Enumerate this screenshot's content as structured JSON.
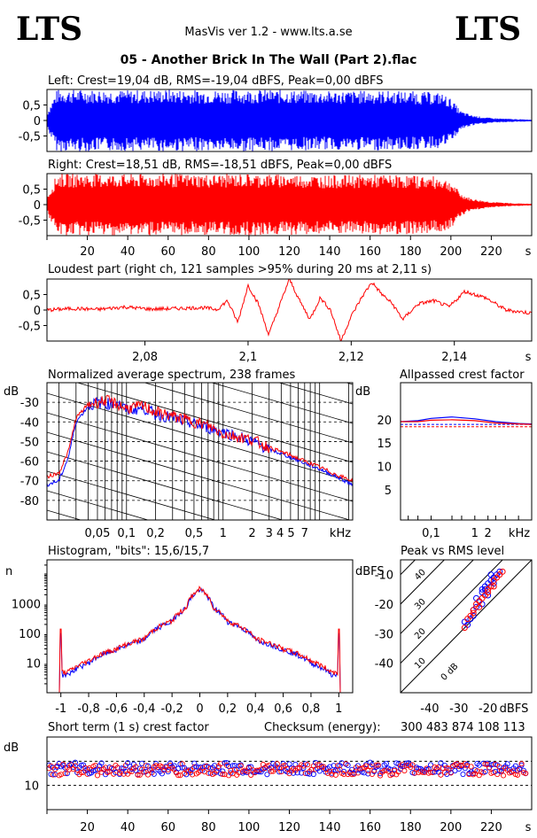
{
  "header": {
    "logo_left": "LTS",
    "logo_right": "LTS",
    "app_title": "MasVis ver 1.2 - www.lts.a.se",
    "file_title": "05 - Another Brick In The Wall (Part 2).flac"
  },
  "colors": {
    "left": "#0000ff",
    "right": "#ff0000",
    "axis": "#000000"
  },
  "chart_data": [
    {
      "id": "left",
      "type": "area",
      "title": "Left: Crest=19,04 dB, RMS=-19,04 dBFS, Peak=0,00 dBFS",
      "ylim": [
        -1,
        1
      ],
      "yticks": [
        "0.5",
        "0",
        "-0.5"
      ],
      "yticklabels": [
        "0,5",
        "0",
        "-0,5"
      ],
      "xlim": [
        0,
        240
      ],
      "envelope": {
        "x": [
          0,
          5,
          10,
          20,
          40,
          60,
          80,
          100,
          120,
          140,
          160,
          180,
          195,
          200,
          205,
          210,
          215,
          220,
          230,
          240
        ],
        "amp": [
          0.25,
          1,
          1,
          1,
          0.98,
          1,
          0.98,
          1,
          0.98,
          0.95,
          0.97,
          0.95,
          0.9,
          0.7,
          0.3,
          0.18,
          0.12,
          0.08,
          0.05,
          0.03
        ]
      }
    },
    {
      "id": "right",
      "type": "area",
      "title": "Right: Crest=18,51 dB, RMS=-18,51 dBFS, Peak=0,00 dBFS",
      "ylim": [
        -1,
        1
      ],
      "yticklabels": [
        "0,5",
        "0",
        "-0,5"
      ],
      "xlim": [
        0,
        240
      ],
      "xticks": [
        20,
        40,
        60,
        80,
        100,
        120,
        140,
        160,
        180,
        200,
        220
      ],
      "xunit": "s",
      "envelope": {
        "x": [
          0,
          5,
          10,
          20,
          40,
          60,
          80,
          100,
          120,
          140,
          160,
          180,
          195,
          200,
          205,
          210,
          215,
          220,
          230,
          240
        ],
        "amp": [
          0.25,
          1,
          1,
          1,
          0.98,
          1,
          0.98,
          1,
          0.98,
          0.95,
          0.97,
          0.95,
          0.9,
          0.75,
          0.35,
          0.2,
          0.14,
          0.09,
          0.05,
          0.03
        ]
      }
    },
    {
      "id": "loudest",
      "type": "line",
      "title": "Loudest part (right ch, 121 samples >95% during 20 ms at 2,11 s)",
      "xlim": [
        2.061,
        2.155
      ],
      "ylim": [
        -1,
        1
      ],
      "yticklabels": [
        "0,5",
        "0",
        "-0,5"
      ],
      "xticks": [
        2.08,
        2.1,
        2.12,
        2.14
      ],
      "xticklabels": [
        "2,08",
        "2,1",
        "2,12",
        "2,14"
      ],
      "xunit": "s",
      "series": [
        {
          "x": [
            2.061,
            2.066,
            2.071,
            2.076,
            2.081,
            2.086,
            2.091,
            2.094,
            2.096,
            2.098,
            2.1,
            2.102,
            2.104,
            2.106,
            2.108,
            2.11,
            2.112,
            2.114,
            2.116,
            2.118,
            2.12,
            2.122,
            2.124,
            2.126,
            2.128,
            2.13,
            2.133,
            2.136,
            2.139,
            2.142,
            2.146,
            2.15,
            2.155
          ],
          "y": [
            0.0,
            0.05,
            0.02,
            0.1,
            0.03,
            0.05,
            0.08,
            0.02,
            0.3,
            -0.4,
            0.8,
            0.2,
            -0.8,
            0.1,
            1.0,
            0.3,
            -0.3,
            0.4,
            0.0,
            -1.0,
            -0.2,
            0.4,
            0.9,
            0.5,
            0.2,
            -0.3,
            0.2,
            0.3,
            0.1,
            0.6,
            0.4,
            0.0,
            -0.1
          ]
        }
      ]
    },
    {
      "id": "spectrum",
      "type": "line",
      "title": "Normalized average spectrum, 238 frames",
      "ylabel": "dB",
      "ylim": [
        -90,
        -20
      ],
      "yticklabels": [
        "-30",
        "-40",
        "-50",
        "-60",
        "-70",
        "-80"
      ],
      "xticklabels": [
        "0,05",
        "0,1",
        "0,2",
        "0,5",
        "1",
        "2",
        "3",
        "4 5",
        "7",
        "kHz"
      ],
      "xscale": "log",
      "xlim": [
        0.015,
        22
      ],
      "series": [
        {
          "name": "left",
          "x": [
            0.015,
            0.02,
            0.025,
            0.03,
            0.04,
            0.05,
            0.06,
            0.08,
            0.1,
            0.15,
            0.2,
            0.3,
            0.5,
            0.7,
            1,
            2,
            3,
            5,
            7,
            10,
            15,
            22
          ],
          "y": [
            -72,
            -70,
            -58,
            -40,
            -32,
            -30,
            -31,
            -30,
            -34,
            -33,
            -36,
            -38,
            -41,
            -43,
            -45,
            -50,
            -54,
            -58,
            -61,
            -64,
            -68,
            -72
          ]
        },
        {
          "name": "right",
          "x": [
            0.015,
            0.02,
            0.025,
            0.03,
            0.04,
            0.05,
            0.06,
            0.08,
            0.1,
            0.15,
            0.2,
            0.3,
            0.5,
            0.7,
            1,
            2,
            3,
            5,
            7,
            10,
            15,
            22
          ],
          "y": [
            -68,
            -66,
            -55,
            -38,
            -31,
            -30,
            -29,
            -31,
            -33,
            -32,
            -35,
            -37,
            -40,
            -42,
            -46,
            -49,
            -53,
            -57,
            -60,
            -63,
            -67,
            -70
          ]
        }
      ]
    },
    {
      "id": "allpassed",
      "type": "line",
      "title": "Allpassed crest factor",
      "ylabel": "dB",
      "ylim": [
        0,
        25
      ],
      "yticklabels": [
        "20",
        "15",
        "10",
        "5"
      ],
      "xticklabels": [
        "0,1",
        "1",
        "2",
        "kHz"
      ],
      "xscale": "log",
      "xlim": [
        0.02,
        20
      ],
      "series": [
        {
          "name": "left",
          "x": [
            0.02,
            0.05,
            0.1,
            0.3,
            1,
            3,
            10,
            20
          ],
          "y": [
            19.6,
            19.8,
            20.3,
            20.6,
            20.2,
            19.6,
            19.2,
            19.1
          ]
        },
        {
          "name": "right",
          "x": [
            0.02,
            0.05,
            0.1,
            0.3,
            1,
            3,
            10,
            20
          ],
          "y": [
            19.6,
            19.6,
            19.9,
            20.0,
            19.8,
            19.3,
            19.1,
            19.0
          ]
        }
      ],
      "reference": [
        {
          "y": 19.0,
          "color": "#0000ff"
        },
        {
          "y": 18.5,
          "color": "#ff0000"
        }
      ]
    },
    {
      "id": "histogram",
      "type": "line",
      "title": "Histogram, \"bits\": 15,6/15,7",
      "ylabel": "n",
      "yscale": "log",
      "ylim": [
        1,
        30000
      ],
      "yticklabels": [
        "1000",
        "100",
        "10"
      ],
      "xlim": [
        -1.1,
        1.1
      ],
      "xticklabels": [
        "-1",
        "-0,8",
        "-0,6",
        "-0,4",
        "-0,2",
        "0",
        "0,2",
        "0,4",
        "0,6",
        "0,8",
        "1"
      ],
      "series": [
        {
          "name": "left",
          "x": [
            -1,
            -0.95,
            -0.9,
            -0.8,
            -0.6,
            -0.4,
            -0.2,
            -0.1,
            0,
            0.1,
            0.2,
            0.4,
            0.6,
            0.8,
            0.9,
            0.95,
            1
          ],
          "y": [
            100,
            4,
            6,
            10,
            28,
            60,
            250,
            700,
            3000,
            700,
            250,
            60,
            28,
            10,
            6,
            4,
            100
          ]
        },
        {
          "name": "right",
          "x": [
            -1,
            -0.95,
            -0.9,
            -0.8,
            -0.6,
            -0.4,
            -0.2,
            -0.1,
            0,
            0.1,
            0.2,
            0.4,
            0.6,
            0.8,
            0.9,
            0.95,
            1
          ],
          "y": [
            140,
            5,
            7,
            12,
            30,
            65,
            260,
            720,
            3200,
            720,
            260,
            65,
            30,
            12,
            7,
            5,
            140
          ]
        }
      ]
    },
    {
      "id": "peakrms",
      "type": "scatter",
      "title": "Peak vs RMS level",
      "ylabel": "dBFS",
      "ylim": [
        -50,
        -5
      ],
      "yticklabels": [
        "-10",
        "-20",
        "-30",
        "-40"
      ],
      "xlim": [
        -50,
        -5
      ],
      "xticklabels": [
        "-40",
        "-30",
        "-20",
        "dBFS"
      ],
      "diagonal_labels": [
        "40",
        "30",
        "20",
        "10",
        "0 dB"
      ],
      "series": [
        {
          "name": "left",
          "x": [
            -27,
            -26,
            -25,
            -24,
            -24,
            -23,
            -22,
            -22,
            -21,
            -20,
            -20,
            -19,
            -18,
            -17,
            -16,
            -22,
            -21,
            -19,
            -18,
            -28,
            -25
          ],
          "y": [
            -27,
            -25,
            -22,
            -21,
            -18,
            -19,
            -16,
            -20,
            -14,
            -13,
            -17,
            -12,
            -11,
            -10,
            -9,
            -15,
            -15,
            -10,
            -13,
            -26,
            -24
          ]
        },
        {
          "name": "right",
          "x": [
            -28,
            -27,
            -26,
            -25,
            -24,
            -23,
            -22,
            -21,
            -20,
            -19,
            -18,
            -17,
            -16,
            -15,
            -20,
            -18,
            -23,
            -25
          ],
          "y": [
            -28,
            -25,
            -24,
            -22,
            -20,
            -19,
            -18,
            -17,
            -15,
            -14,
            -12,
            -11,
            -10,
            -9,
            -16,
            -14,
            -21,
            -23
          ]
        }
      ]
    },
    {
      "id": "shortcrest",
      "type": "scatter",
      "title": "Short term (1 s) crest factor",
      "checksum_label": "Checksum (energy):",
      "checksum_value": "300 483 874 108 113",
      "ylabel": "dB",
      "ylim": [
        0,
        30
      ],
      "yticklabels": [
        "10"
      ],
      "xlim": [
        0,
        240
      ],
      "xticks": [
        20,
        40,
        60,
        80,
        100,
        120,
        140,
        160,
        180,
        200,
        220
      ],
      "xunit": "s",
      "series_level": {
        "left": 17,
        "right": 16.5
      }
    }
  ]
}
